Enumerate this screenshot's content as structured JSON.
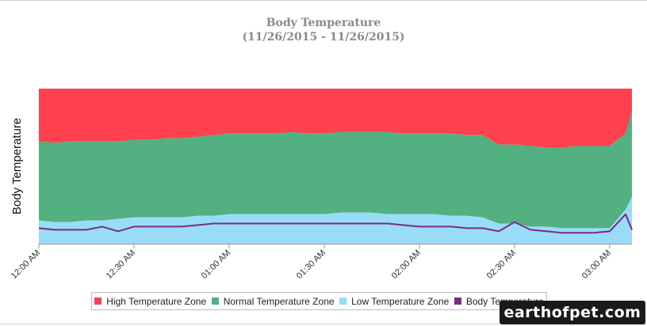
{
  "chart_data": {
    "type": "area",
    "title": "Body Temperature",
    "subtitle": "(11/26/2015 - 11/26/2015)",
    "ylabel": "Body Temperature",
    "xlabel": "",
    "x_ticks": [
      "12:00 AM",
      "12:30 AM",
      "01:00 AM",
      "01:30 AM",
      "02:00 AM",
      "02:30 AM",
      "03:00 AM"
    ],
    "x_minutes": [
      0,
      5,
      10,
      15,
      20,
      25,
      30,
      35,
      40,
      45,
      50,
      55,
      60,
      65,
      70,
      75,
      80,
      85,
      90,
      95,
      100,
      105,
      110,
      115,
      120,
      125,
      130,
      135,
      140,
      145,
      150,
      155,
      160,
      165,
      170,
      175,
      180,
      185,
      187
    ],
    "y_range": [
      0,
      100
    ],
    "grid": false,
    "legend_position": "bottom",
    "series": [
      {
        "name": "Low Temperature Zone",
        "color": "#99dcf7",
        "values": [
          15,
          14,
          14,
          15,
          15,
          16,
          17,
          17,
          17,
          17,
          18,
          18,
          19,
          19,
          19,
          19,
          19,
          19,
          19,
          20,
          20,
          20,
          19,
          19,
          19,
          19,
          18,
          18,
          17,
          13,
          13,
          11,
          11,
          10,
          10,
          10,
          10,
          22,
          30
        ]
      },
      {
        "name": "Normal Temperature Zone",
        "color": "#53b080",
        "values": [
          66,
          65,
          66,
          66,
          66,
          66,
          67,
          67,
          68,
          68,
          69,
          70,
          71,
          71,
          71,
          71,
          72,
          71,
          71,
          72,
          72,
          72,
          72,
          71,
          71,
          71,
          71,
          70,
          70,
          64,
          64,
          63,
          62,
          62,
          63,
          63,
          63,
          71,
          85
        ]
      },
      {
        "name": "High Temperature Zone",
        "color": "#ff404e",
        "values": [
          100,
          100,
          100,
          100,
          100,
          100,
          100,
          100,
          100,
          100,
          100,
          100,
          100,
          100,
          100,
          100,
          100,
          100,
          100,
          100,
          100,
          100,
          100,
          100,
          100,
          100,
          100,
          100,
          100,
          100,
          100,
          100,
          100,
          100,
          100,
          100,
          100,
          100,
          100
        ]
      },
      {
        "name": "Body Temperature",
        "color": "#7b2a8a",
        "values": [
          10,
          9,
          9,
          9,
          11,
          8,
          11,
          11,
          11,
          11,
          12,
          13,
          13,
          13,
          13,
          13,
          13,
          13,
          13,
          13,
          13,
          13,
          13,
          12,
          11,
          11,
          11,
          10,
          10,
          8,
          14,
          9,
          8,
          7,
          7,
          7,
          8,
          19,
          9
        ]
      }
    ]
  },
  "legend": {
    "high": "High Temperature Zone",
    "normal": "Normal Temperature Zone",
    "low": "Low Temperature Zone",
    "body": "Body Temperature"
  },
  "watermark": "earthofpet.com"
}
